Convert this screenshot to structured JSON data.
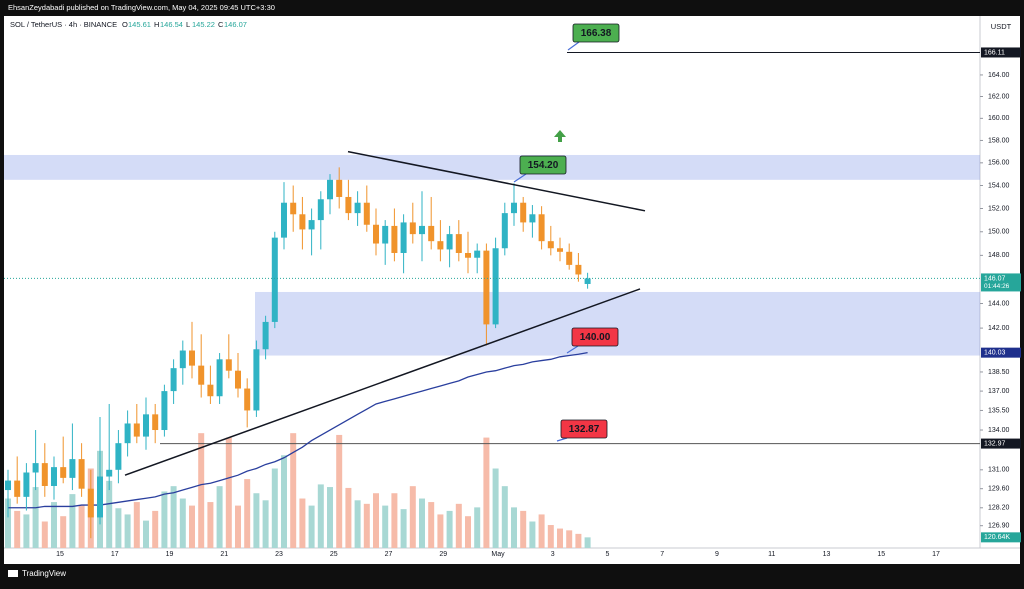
{
  "chart_data": {
    "type": "candlestick",
    "publisher": "EhsanZeydabadi published on TradingView.com, May 04, 2025 09:45 UTC+3:30",
    "symbol": "SOL / TetherUS · 4h · BINANCE",
    "ohlc": [
      {
        "key": "O",
        "value": 145.61
      },
      {
        "key": "H",
        "value": 146.54
      },
      {
        "key": "L",
        "value": 145.22
      },
      {
        "key": "C",
        "value": 146.07
      }
    ],
    "currency": "USDT",
    "brand": "TradingView",
    "log_scale": true,
    "ylim": [
      125.3,
      169.4
    ],
    "yticks": [
      {
        "value": 164,
        "label": "164.00"
      },
      {
        "value": 162,
        "label": "162.00"
      },
      {
        "value": 160,
        "label": "160.00"
      },
      {
        "value": 158,
        "label": "158.00"
      },
      {
        "value": 156,
        "label": "156.00"
      },
      {
        "value": 154,
        "label": "154.00"
      },
      {
        "value": 152,
        "label": "152.00"
      },
      {
        "value": 150,
        "label": "150.00"
      },
      {
        "value": 148,
        "label": "148.00"
      },
      {
        "value": 144,
        "label": "144.00"
      },
      {
        "value": 142,
        "label": "142.00"
      },
      {
        "value": 138.5,
        "label": "138.50"
      },
      {
        "value": 137,
        "label": "137.00"
      },
      {
        "value": 135.5,
        "label": "135.50"
      },
      {
        "value": 134,
        "label": "134.00"
      },
      {
        "value": 131,
        "label": "131.00"
      },
      {
        "value": 129.6,
        "label": "129.60"
      },
      {
        "value": 128.2,
        "label": "128.20"
      },
      {
        "value": 126.9,
        "label": "126.90"
      }
    ],
    "axis_labels": [
      {
        "value": 166.11,
        "label": "166.11",
        "color": "#131722"
      },
      {
        "value": 146.07,
        "label": "146.07",
        "color": "#26a69a"
      },
      {
        "value": 140.03,
        "label": "140.03",
        "color": "#1e2f8c"
      },
      {
        "value": 132.97,
        "label": "132.97",
        "color": "#131722"
      }
    ],
    "countdown": "01:44:26",
    "x_labels": [
      "15",
      "17",
      "19",
      "21",
      "23",
      "25",
      "27",
      "29",
      "May",
      "3",
      "5",
      "7",
      "9",
      "11",
      "13",
      "15",
      "17"
    ],
    "up_color": "#2fb3c4",
    "down_color": "#f0932b",
    "open": [
      129.5,
      130.2,
      129.0,
      130.8,
      131.5,
      129.8,
      131.2,
      130.4,
      131.8,
      129.6,
      127.5,
      130.5,
      131,
      133,
      134.5,
      133.5,
      135.2,
      134,
      137,
      138.8,
      140.2,
      139,
      137.5,
      136.6,
      139.5,
      138.6,
      137.2,
      135.5,
      140.3,
      142.5,
      149.5,
      152.5,
      151.5,
      150.2,
      151,
      152.8,
      154.5,
      153,
      151.6,
      152.5,
      150.6,
      149,
      150.5,
      148.2,
      150.8,
      149.8,
      150.5,
      149.2,
      148.5,
      149.8,
      148.2,
      147.8,
      148.4,
      142.3,
      148.6,
      151.6,
      152.5,
      150.8,
      151.5,
      149.2,
      148.6,
      148.3,
      147.2,
      145.61
    ],
    "high": [
      131,
      132,
      131.5,
      134,
      133,
      132,
      133.5,
      134.5,
      133,
      131,
      135,
      136,
      134,
      135.5,
      136,
      136.5,
      136,
      137.5,
      139.5,
      141,
      142.5,
      141.5,
      139,
      140,
      141.5,
      140,
      138,
      141,
      143,
      150,
      154.3,
      154,
      153,
      152,
      153.5,
      155,
      155.6,
      154.5,
      153.5,
      154,
      152,
      151,
      152,
      151.5,
      152.5,
      153.5,
      153,
      151,
      150.5,
      151,
      150,
      149,
      149,
      149.5,
      152.5,
      154.2,
      153,
      152.3,
      152.2,
      150.5,
      149.5,
      149,
      148.2,
      146.54
    ],
    "low": [
      127.5,
      128.5,
      128,
      129.5,
      129,
      128.8,
      130,
      129.5,
      129,
      126,
      127,
      129.5,
      130,
      132,
      133,
      132.5,
      133,
      133.5,
      136,
      137.5,
      138,
      136.5,
      136,
      136,
      138,
      136.5,
      134.2,
      135,
      139.5,
      142,
      148.5,
      150,
      148.5,
      148,
      148.5,
      151.5,
      152,
      151,
      150.5,
      150,
      148,
      147.2,
      147.5,
      146.5,
      149,
      147.5,
      148.5,
      147.5,
      147,
      147.5,
      146.5,
      146.5,
      140.6,
      142,
      148,
      150.5,
      150,
      149.5,
      148.5,
      148,
      147.5,
      146.8,
      145.8,
      145.22
    ],
    "close": [
      130.2,
      129.0,
      130.8,
      131.5,
      129.8,
      131.2,
      130.4,
      131.8,
      129.6,
      127.5,
      130.5,
      131,
      133,
      134.5,
      133.5,
      135.2,
      134,
      137,
      138.8,
      140.2,
      139,
      137.5,
      136.6,
      139.5,
      138.6,
      137.2,
      135.5,
      140.3,
      142.5,
      149.5,
      152.5,
      151.5,
      150.2,
      151,
      152.8,
      154.5,
      153,
      151.6,
      152.5,
      150.6,
      149,
      150.5,
      148.2,
      150.8,
      149.8,
      150.5,
      149.2,
      148.5,
      149.8,
      148.2,
      147.8,
      148.4,
      142.3,
      148.6,
      151.6,
      152.5,
      150.8,
      151.5,
      149.2,
      148.6,
      148.3,
      147.2,
      146.4,
      146.07
    ],
    "volume": [
      560,
      420,
      380,
      690,
      300,
      520,
      360,
      610,
      480,
      900,
      1100,
      760,
      450,
      380,
      520,
      310,
      420,
      640,
      700,
      560,
      480,
      1300,
      520,
      700,
      1250,
      480,
      780,
      620,
      540,
      900,
      1050,
      1300,
      560,
      480,
      720,
      690,
      1280,
      680,
      540,
      500,
      620,
      480,
      620,
      440,
      700,
      560,
      520,
      380,
      420,
      500,
      360,
      460,
      1250,
      900,
      700,
      460,
      420,
      300,
      380,
      260,
      220,
      200,
      160,
      120.64
    ],
    "volume_lim": [
      0,
      6000
    ],
    "volume_label": {
      "value": 120.64,
      "label": "120.64K"
    },
    "moving_average": {
      "color": "#2a3f9e",
      "values": [
        128.2,
        128.2,
        128.2,
        128.2,
        128.3,
        128.3,
        128.3,
        128.3,
        128.4,
        128.4,
        128.4,
        128.5,
        128.6,
        128.7,
        128.8,
        128.9,
        129.0,
        129.2,
        129.3,
        129.5,
        129.7,
        129.9,
        130.0,
        130.2,
        130.4,
        130.6,
        130.9,
        131.1,
        131.4,
        131.6,
        131.9,
        132.3,
        132.7,
        133.2,
        133.6,
        134.0,
        134.4,
        134.8,
        135.2,
        135.6,
        136.0,
        136.2,
        136.4,
        136.6,
        136.8,
        137.0,
        137.2,
        137.4,
        137.6,
        137.8,
        138.1,
        138.3,
        138.5,
        138.6,
        138.8,
        139.0,
        139.1,
        139.3,
        139.4,
        139.5,
        139.7,
        139.8,
        139.9,
        140.03
      ]
    },
    "zones": [
      {
        "low": 154.5,
        "high": 156.7
      },
      {
        "low": 139.8,
        "high": 144.95
      }
    ],
    "levels": [
      166.11,
      132.97
    ],
    "trendlines": [
      {
        "from": 157.0,
        "to": 151.8
      },
      {
        "from": 130.6,
        "to": 145.2
      }
    ],
    "price_labels": [
      {
        "text": "166.38",
        "color": "#4caf50"
      },
      {
        "text": "154.20",
        "color": "#4caf50"
      },
      {
        "text": "140.00",
        "color": "#f23645"
      },
      {
        "text": "132.87",
        "color": "#f23645"
      }
    ]
  }
}
